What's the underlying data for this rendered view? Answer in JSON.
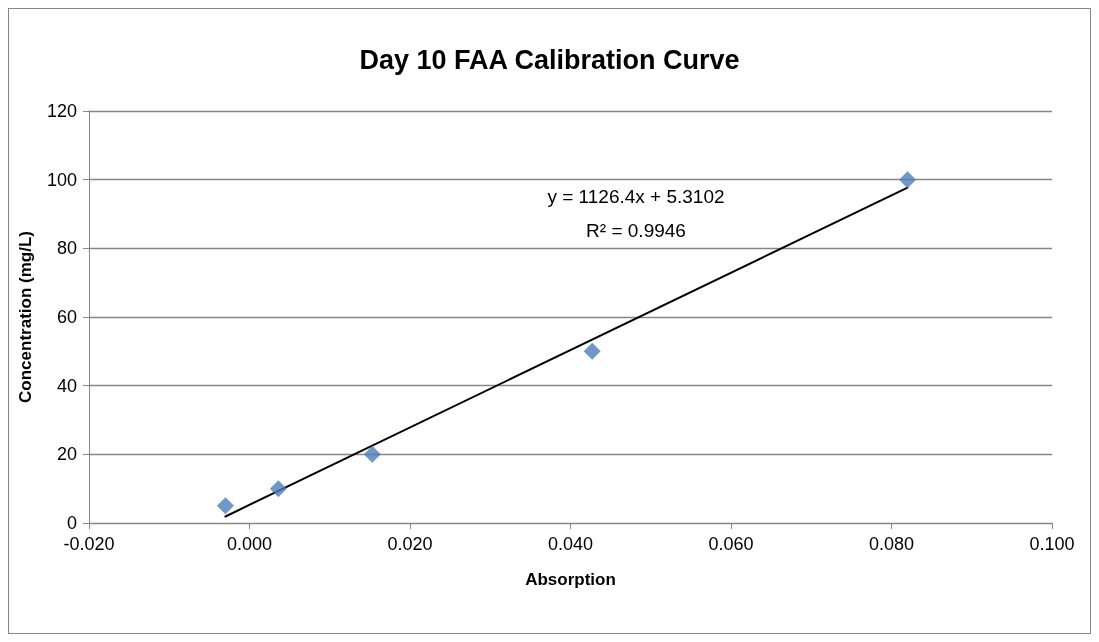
{
  "chart_data": {
    "type": "scatter",
    "title": "Day 10 FAA Calibration Curve",
    "xlabel": "Absorption",
    "ylabel": "Concentration (mg/L)",
    "annotations": [
      "y = 1126.4x + 5.3102",
      "R² = 0.9946"
    ],
    "series": [
      {
        "color": "#4a7ebb",
        "marker": "diamond",
        "x": [
          -0.003,
          0.0036,
          0.0153,
          0.0427,
          0.082
        ],
        "values": [
          5,
          10,
          20,
          50,
          100
        ]
      },
      {
        "type": "line",
        "color": "#000000",
        "marker": "none",
        "x": [
          -0.003,
          0.082
        ],
        "values": [
          1.9,
          97.7
        ]
      }
    ],
    "xlim": [
      -0.02,
      0.1
    ],
    "xticks": [
      {
        "value": -0.02,
        "label": "-0.020"
      },
      {
        "value": 0,
        "label": "0.000"
      },
      {
        "value": 0.02,
        "label": "0.020"
      },
      {
        "value": 0.04,
        "label": "0.040"
      },
      {
        "value": 0.06,
        "label": "0.060"
      },
      {
        "value": 0.08,
        "label": "0.080"
      },
      {
        "value": 0.1,
        "label": "0.100"
      }
    ],
    "ylim": [
      0,
      120
    ],
    "yticks": [
      0,
      20,
      40,
      60,
      80,
      100,
      120
    ],
    "grid": "y"
  }
}
